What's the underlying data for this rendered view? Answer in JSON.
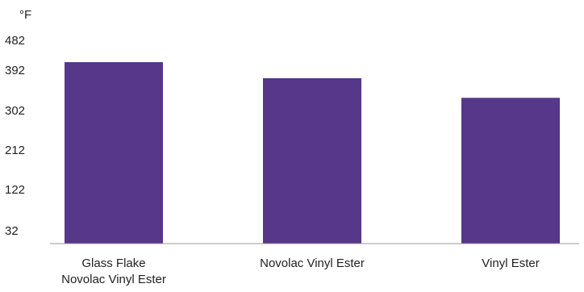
{
  "chart_data": {
    "type": "bar",
    "unit": "°F",
    "categories": [
      [
        "Glass Flake",
        "Novolac Vinyl Ester"
      ],
      [
        "Novolac Vinyl Ester"
      ],
      [
        "Vinyl Ester"
      ]
    ],
    "values": [
      410,
      374,
      330
    ],
    "yticks": [
      "32",
      "122",
      "212",
      "302",
      "392",
      "482"
    ],
    "ylim": [
      32,
      482
    ],
    "grid": false,
    "bar_color": "#56378a"
  }
}
